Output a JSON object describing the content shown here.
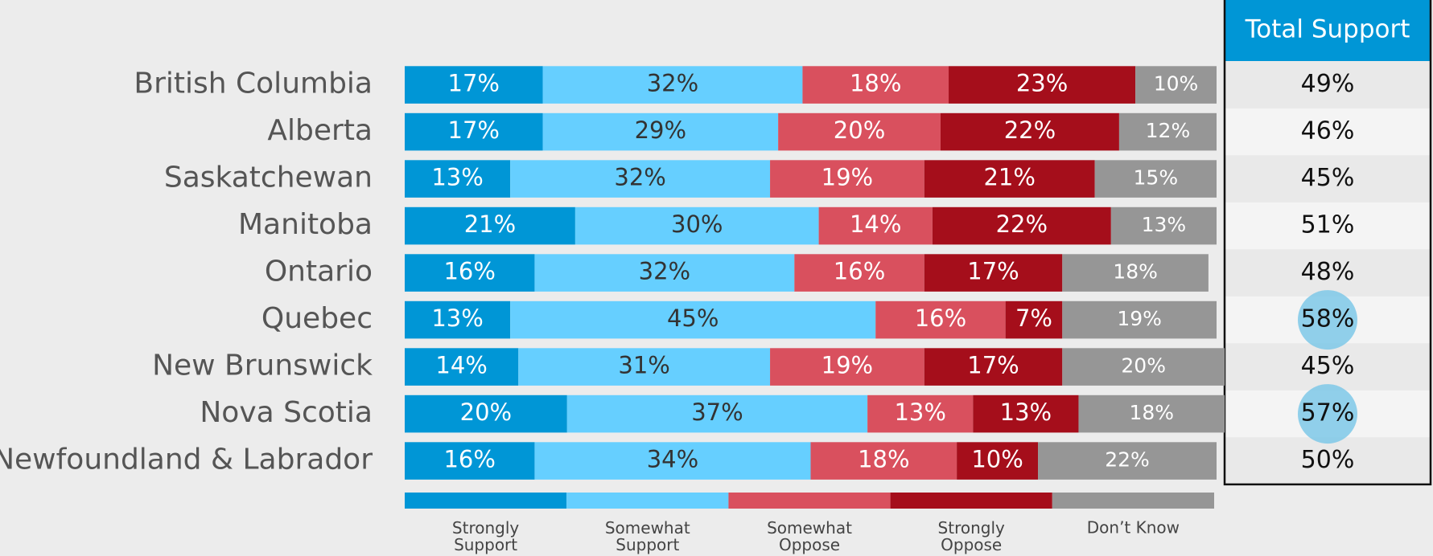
{
  "chart_data": {
    "type": "stacked-bar",
    "categories": [
      "British Columbia",
      "Alberta",
      "Saskatchewan",
      "Manitoba",
      "Ontario",
      "Quebec",
      "New Brunswick",
      "Nova Scotia",
      "Newfoundland & Labrador"
    ],
    "xlim": [
      0,
      100
    ],
    "series": [
      {
        "name": "Strongly Support",
        "color": "#0096d6",
        "label_color": "#ffffff",
        "values": [
          17,
          17,
          13,
          21,
          16,
          13,
          14,
          20,
          16
        ],
        "value_labels": [
          "17%",
          "17%",
          "13%",
          "21%",
          "16%",
          "13%",
          "14%",
          "20%",
          "16%"
        ]
      },
      {
        "name": "Somewhat Support",
        "color": "#66cfff",
        "label_color": "#333333",
        "values": [
          32,
          29,
          32,
          30,
          32,
          45,
          31,
          37,
          34
        ],
        "value_labels": [
          "32%",
          "29%",
          "32%",
          "30%",
          "32%",
          "45%",
          "31%",
          "37%",
          "34%"
        ]
      },
      {
        "name": "Somewhat Oppose",
        "color": "#d9505e",
        "label_color": "#ffffff",
        "values": [
          18,
          20,
          19,
          14,
          16,
          16,
          19,
          13,
          18
        ],
        "value_labels": [
          "18%",
          "20%",
          "19%",
          "14%",
          "16%",
          "16%",
          "19%",
          "13%",
          "18%"
        ]
      },
      {
        "name": "Strongly Oppose",
        "color": "#a50e1b",
        "label_color": "#ffffff",
        "values": [
          23,
          22,
          21,
          22,
          17,
          7,
          17,
          13,
          10
        ],
        "value_labels": [
          "23%",
          "22%",
          "21%",
          "22%",
          "17%",
          "7%",
          "17%",
          "13%",
          "10%"
        ]
      },
      {
        "name": "Don’t Know",
        "color": "#969696",
        "label_color": "#ffffff",
        "values": [
          10,
          12,
          15,
          13,
          18,
          19,
          20,
          18,
          22
        ],
        "value_labels": [
          "10%",
          "12%",
          "15%",
          "13%",
          "18%",
          "19%",
          "20%",
          "18%",
          "22%"
        ]
      }
    ],
    "table": {
      "header": "Total Support",
      "header_color": "#0096d6",
      "values": [
        49,
        46,
        45,
        51,
        48,
        58,
        45,
        57,
        50
      ],
      "value_labels": [
        "49%",
        "46%",
        "45%",
        "51%",
        "48%",
        "58%",
        "45%",
        "57%",
        "50%"
      ],
      "highlight_rows": [
        5,
        7
      ],
      "highlight_color": "#7ec8e8"
    }
  }
}
